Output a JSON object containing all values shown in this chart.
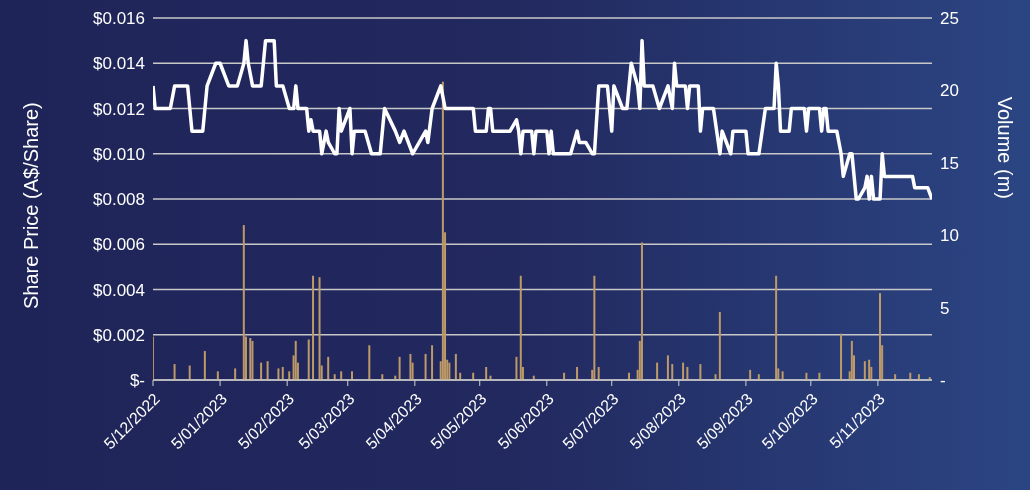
{
  "chart_data": {
    "type": "line",
    "ylabel": "Share Price (A$/Share)",
    "y2label": "Volume (m)",
    "xlim": [
      "2022-12-05",
      "2023-11-30"
    ],
    "xticks": [
      {
        "value": "2022-12-05",
        "label": "5/12/2022"
      },
      {
        "value": "2023-01-05",
        "label": "5/01/2023"
      },
      {
        "value": "2023-02-05",
        "label": "5/02/2023"
      },
      {
        "value": "2023-03-05",
        "label": "5/03/2023"
      },
      {
        "value": "2023-04-05",
        "label": "5/04/2023"
      },
      {
        "value": "2023-05-05",
        "label": "5/05/2023"
      },
      {
        "value": "2023-06-05",
        "label": "5/06/2023"
      },
      {
        "value": "2023-07-05",
        "label": "5/07/2023"
      },
      {
        "value": "2023-08-05",
        "label": "5/08/2023"
      },
      {
        "value": "2023-09-05",
        "label": "5/09/2023"
      },
      {
        "value": "2023-10-05",
        "label": "5/10/2023"
      },
      {
        "value": "2023-11-05",
        "label": "5/11/2023"
      }
    ],
    "ylim": [
      0,
      0.016
    ],
    "yticks": [
      {
        "value": 0,
        "label": "$-"
      },
      {
        "value": 0.002,
        "label": "$0.002"
      },
      {
        "value": 0.004,
        "label": "$0.004"
      },
      {
        "value": 0.006,
        "label": "$0.006"
      },
      {
        "value": 0.008,
        "label": "$0.008"
      },
      {
        "value": 0.01,
        "label": "$0.010"
      },
      {
        "value": 0.012,
        "label": "$0.012"
      },
      {
        "value": 0.014,
        "label": "$0.014"
      },
      {
        "value": 0.016,
        "label": "$0.016"
      }
    ],
    "y2lim": [
      0,
      25
    ],
    "y2ticks": [
      {
        "value": 0,
        "label": "-"
      },
      5,
      10,
      15,
      20,
      25
    ],
    "grid": "y",
    "legend": false,
    "series": [
      {
        "type": "bar",
        "axis": "y2",
        "color": "#bd9a68",
        "x": [
          "2022-12-05",
          "2022-12-15",
          "2022-12-22",
          "2022-12-29",
          "2023-01-04",
          "2023-01-12",
          "2023-01-16",
          "2023-01-17",
          "2023-01-19",
          "2023-01-20",
          "2023-01-24",
          "2023-01-27",
          "2023-02-01",
          "2023-02-03",
          "2023-02-06",
          "2023-02-08",
          "2023-02-09",
          "2023-02-10",
          "2023-02-15",
          "2023-02-17",
          "2023-02-20",
          "2023-02-21",
          "2023-02-24",
          "2023-02-27",
          "2023-03-02",
          "2023-03-07",
          "2023-03-15",
          "2023-03-21",
          "2023-03-27",
          "2023-03-29",
          "2023-04-03",
          "2023-04-04",
          "2023-04-10",
          "2023-04-13",
          "2023-04-17",
          "2023-04-18",
          "2023-04-19",
          "2023-04-20",
          "2023-04-21",
          "2023-04-24",
          "2023-04-26",
          "2023-05-02",
          "2023-05-08",
          "2023-05-10",
          "2023-05-22",
          "2023-05-24",
          "2023-05-25",
          "2023-05-30",
          "2023-06-13",
          "2023-06-19",
          "2023-06-26",
          "2023-06-27",
          "2023-06-29",
          "2023-07-13",
          "2023-07-17",
          "2023-07-18",
          "2023-07-19",
          "2023-07-26",
          "2023-07-31",
          "2023-08-02",
          "2023-08-07",
          "2023-08-09",
          "2023-08-15",
          "2023-08-22",
          "2023-08-24",
          "2023-09-07",
          "2023-09-11",
          "2023-09-19",
          "2023-09-20",
          "2023-09-22",
          "2023-10-03",
          "2023-10-09",
          "2023-10-19",
          "2023-10-23",
          "2023-10-24",
          "2023-10-25",
          "2023-10-30",
          "2023-11-01",
          "2023-11-02",
          "2023-11-06",
          "2023-11-07",
          "2023-11-13",
          "2023-11-20",
          "2023-11-24",
          "2023-11-29"
        ],
        "values": [
          3.0,
          1.1,
          1.0,
          2.0,
          0.6,
          0.8,
          10.7,
          3.0,
          2.9,
          2.7,
          1.2,
          1.3,
          0.8,
          0.9,
          0.6,
          1.7,
          2.7,
          1.2,
          2.8,
          7.2,
          7.1,
          1.0,
          1.6,
          0.4,
          0.6,
          0.6,
          2.4,
          0.4,
          0.3,
          1.6,
          1.8,
          1.2,
          1.8,
          2.4,
          1.3,
          20.6,
          10.2,
          1.4,
          1.2,
          1.8,
          0.5,
          0.5,
          0.9,
          0.3,
          1.6,
          7.2,
          0.9,
          0.3,
          0.5,
          0.9,
          0.7,
          7.2,
          0.9,
          0.5,
          0.7,
          2.7,
          9.5,
          1.2,
          1.7,
          1.1,
          1.2,
          0.9,
          1.1,
          0.4,
          4.7,
          0.7,
          0.4,
          7.2,
          0.8,
          0.6,
          0.5,
          0.5,
          3.2,
          0.6,
          2.7,
          1.7,
          1.3,
          1.4,
          0.9,
          6.0,
          2.4,
          0.4,
          0.5,
          0.4,
          0.2
        ]
      },
      {
        "color": "#ffffff",
        "x": [
          "2022-12-05",
          "2022-12-06",
          "2022-12-13",
          "2022-12-15",
          "2022-12-21",
          "2022-12-23",
          "2022-12-28",
          "2022-12-30",
          "2023-01-03",
          "2023-01-05",
          "2023-01-09",
          "2023-01-13",
          "2023-01-16",
          "2023-01-17",
          "2023-01-18",
          "2023-01-20",
          "2023-01-24",
          "2023-01-26",
          "2023-01-30",
          "2023-01-31",
          "2023-02-03",
          "2023-02-06",
          "2023-02-08",
          "2023-02-09",
          "2023-02-10",
          "2023-02-14",
          "2023-02-15",
          "2023-02-16",
          "2023-02-17",
          "2023-02-20",
          "2023-02-21",
          "2023-02-23",
          "2023-02-24",
          "2023-02-27",
          "2023-02-28",
          "2023-03-01",
          "2023-03-02",
          "2023-03-06",
          "2023-03-07",
          "2023-03-08",
          "2023-03-13",
          "2023-03-16",
          "2023-03-20",
          "2023-03-22",
          "2023-03-27",
          "2023-03-29",
          "2023-03-31",
          "2023-04-04",
          "2023-04-10",
          "2023-04-11",
          "2023-04-13",
          "2023-04-17",
          "2023-04-19",
          "2023-05-02",
          "2023-05-03",
          "2023-05-08",
          "2023-05-09",
          "2023-05-10",
          "2023-05-11",
          "2023-05-19",
          "2023-05-22",
          "2023-05-23",
          "2023-05-24",
          "2023-05-25",
          "2023-05-29",
          "2023-05-30",
          "2023-05-31",
          "2023-06-05",
          "2023-06-06",
          "2023-06-07",
          "2023-06-08",
          "2023-06-16",
          "2023-06-19",
          "2023-06-20",
          "2023-06-23",
          "2023-06-26",
          "2023-06-27",
          "2023-06-29",
          "2023-07-03",
          "2023-07-05",
          "2023-07-06",
          "2023-07-10",
          "2023-07-12",
          "2023-07-14",
          "2023-07-17",
          "2023-07-18",
          "2023-07-19",
          "2023-07-20",
          "2023-07-24",
          "2023-07-27",
          "2023-07-31",
          "2023-08-02",
          "2023-08-03",
          "2023-08-04",
          "2023-08-08",
          "2023-08-09",
          "2023-08-10",
          "2023-08-14",
          "2023-08-15",
          "2023-08-16",
          "2023-08-21",
          "2023-08-24",
          "2023-08-25",
          "2023-08-29",
          "2023-08-30",
          "2023-09-05",
          "2023-09-06",
          "2023-09-11",
          "2023-09-14",
          "2023-09-18",
          "2023-09-19",
          "2023-09-20",
          "2023-09-21",
          "2023-09-25",
          "2023-09-26",
          "2023-10-02",
          "2023-10-03",
          "2023-10-04",
          "2023-10-09",
          "2023-10-10",
          "2023-10-11",
          "2023-10-12",
          "2023-10-13",
          "2023-10-17",
          "2023-10-19",
          "2023-10-20",
          "2023-10-23",
          "2023-10-24",
          "2023-10-26",
          "2023-10-27",
          "2023-10-30",
          "2023-10-31",
          "2023-11-01",
          "2023-11-02",
          "2023-11-03",
          "2023-11-06",
          "2023-11-07",
          "2023-11-08",
          "2023-11-21",
          "2023-11-22",
          "2023-11-28",
          "2023-11-30"
        ],
        "values": [
          0.013,
          0.012,
          0.012,
          0.013,
          0.013,
          0.011,
          0.011,
          0.013,
          0.014,
          0.014,
          0.013,
          0.013,
          0.014,
          0.015,
          0.014,
          0.013,
          0.013,
          0.015,
          0.015,
          0.013,
          0.013,
          0.012,
          0.012,
          0.013,
          0.012,
          0.012,
          0.011,
          0.0115,
          0.011,
          0.011,
          0.01,
          0.011,
          0.0105,
          0.01,
          0.01,
          0.012,
          0.011,
          0.012,
          0.01,
          0.011,
          0.011,
          0.01,
          0.01,
          0.012,
          0.011,
          0.0105,
          0.011,
          0.01,
          0.011,
          0.0105,
          0.012,
          0.013,
          0.012,
          0.012,
          0.011,
          0.011,
          0.012,
          0.012,
          0.011,
          0.011,
          0.0115,
          0.011,
          0.01,
          0.011,
          0.011,
          0.01,
          0.011,
          0.011,
          0.01,
          0.011,
          0.01,
          0.01,
          0.011,
          0.0105,
          0.0105,
          0.01,
          0.01,
          0.013,
          0.013,
          0.011,
          0.013,
          0.012,
          0.012,
          0.014,
          0.013,
          0.012,
          0.015,
          0.013,
          0.013,
          0.012,
          0.013,
          0.012,
          0.014,
          0.013,
          0.013,
          0.012,
          0.013,
          0.013,
          0.011,
          0.012,
          0.012,
          0.01,
          0.011,
          0.01,
          0.011,
          0.011,
          0.01,
          0.01,
          0.012,
          0.012,
          0.014,
          0.013,
          0.011,
          0.011,
          0.012,
          0.012,
          0.011,
          0.012,
          0.012,
          0.011,
          0.012,
          0.012,
          0.011,
          0.011,
          0.01,
          0.009,
          0.01,
          0.01,
          0.008,
          0.008,
          0.0085,
          0.009,
          0.008,
          0.009,
          0.008,
          0.008,
          0.01,
          0.009,
          0.009,
          0.0085,
          0.0085,
          0.008
        ]
      }
    ]
  }
}
